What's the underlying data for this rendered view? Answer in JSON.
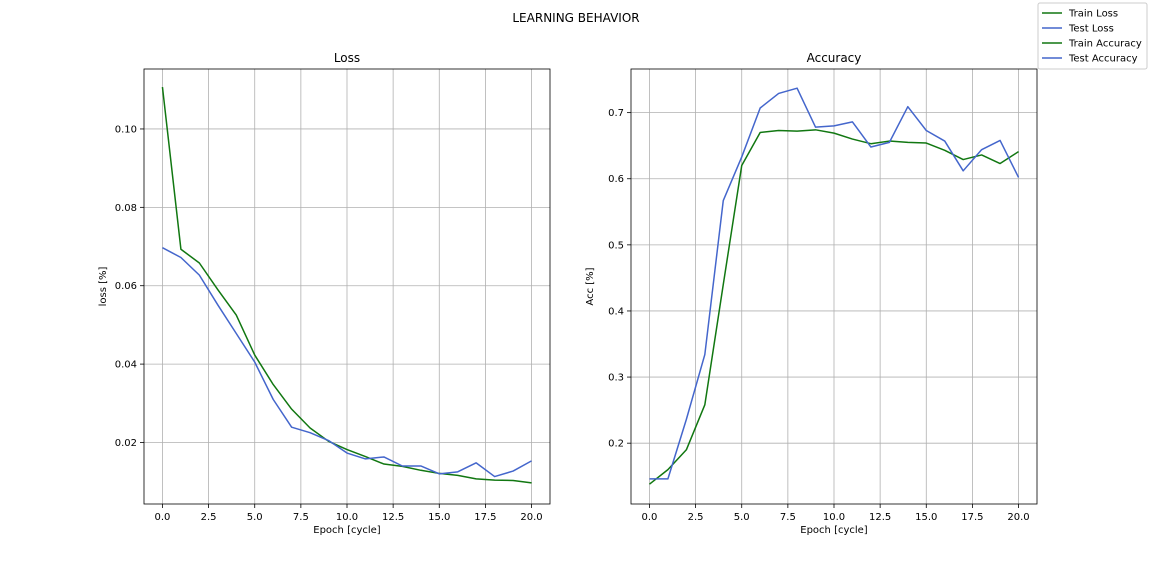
{
  "figure": {
    "suptitle": "LEARNING BEHAVIOR"
  },
  "colors": {
    "train": "#117711",
    "test": "#4466cc",
    "grid": "#b0b0b0",
    "axis": "#000000"
  },
  "legend": {
    "placement": "top-right",
    "entries": [
      {
        "label": "Train Loss",
        "color": "#117711"
      },
      {
        "label": "Test Loss",
        "color": "#4466cc"
      },
      {
        "label": "Train Accuracy",
        "color": "#117711"
      },
      {
        "label": "Test Accuracy",
        "color": "#4466cc"
      }
    ]
  },
  "chart_data": [
    {
      "type": "line",
      "title": "Loss",
      "xlabel": "Epoch [cycle]",
      "ylabel": "loss [%]",
      "xlim": [
        -1,
        21
      ],
      "ylim": [
        0.0043,
        0.1153
      ],
      "grid": true,
      "xticks": [
        0,
        2.5,
        5,
        7.5,
        10,
        12.5,
        15,
        17.5,
        20
      ],
      "xtick_labels": [
        "0.0",
        "2.5",
        "5.0",
        "7.5",
        "10.0",
        "12.5",
        "15.0",
        "17.5",
        "20.0"
      ],
      "yticks": [
        0.02,
        0.04,
        0.06,
        0.08,
        0.1
      ],
      "ytick_labels": [
        "0.02",
        "0.04",
        "0.06",
        "0.08",
        "0.10"
      ],
      "x": [
        0,
        1,
        2,
        3,
        4,
        5,
        6,
        7,
        8,
        9,
        10,
        11,
        12,
        13,
        14,
        15,
        16,
        17,
        18,
        19,
        20
      ],
      "series": [
        {
          "name": "Train Loss",
          "color": "#117711",
          "values": [
            0.1107,
            0.0693,
            0.0658,
            0.059,
            0.0525,
            0.0423,
            0.0348,
            0.0285,
            0.0237,
            0.0203,
            0.0182,
            0.0164,
            0.0145,
            0.0139,
            0.0129,
            0.0121,
            0.0116,
            0.0107,
            0.0104,
            0.0103,
            0.0097
          ]
        },
        {
          "name": "Test Loss",
          "color": "#4466cc",
          "values": [
            0.0697,
            0.0672,
            0.0627,
            0.0551,
            0.0478,
            0.0405,
            0.031,
            0.0239,
            0.0225,
            0.0205,
            0.0173,
            0.0158,
            0.0163,
            0.014,
            0.014,
            0.012,
            0.0125,
            0.0148,
            0.0113,
            0.0127,
            0.0153
          ]
        }
      ]
    },
    {
      "type": "line",
      "title": "Accuracy",
      "xlabel": "Epoch [cycle]",
      "ylabel": "Acc [%]",
      "xlim": [
        -1,
        21
      ],
      "ylim": [
        0.108,
        0.766
      ],
      "grid": true,
      "xticks": [
        0,
        2.5,
        5,
        7.5,
        10,
        12.5,
        15,
        17.5,
        20
      ],
      "xtick_labels": [
        "0.0",
        "2.5",
        "5.0",
        "7.5",
        "10.0",
        "12.5",
        "15.0",
        "17.5",
        "20.0"
      ],
      "yticks": [
        0.2,
        0.3,
        0.4,
        0.5,
        0.6,
        0.7
      ],
      "ytick_labels": [
        "0.2",
        "0.3",
        "0.4",
        "0.5",
        "0.6",
        "0.7"
      ],
      "x": [
        0,
        1,
        2,
        3,
        4,
        5,
        6,
        7,
        8,
        9,
        10,
        11,
        12,
        13,
        14,
        15,
        16,
        17,
        18,
        19,
        20
      ],
      "series": [
        {
          "name": "Train Accuracy",
          "color": "#117711",
          "values": [
            0.138,
            0.16,
            0.19,
            0.258,
            0.44,
            0.62,
            0.67,
            0.673,
            0.672,
            0.674,
            0.669,
            0.66,
            0.653,
            0.657,
            0.655,
            0.654,
            0.643,
            0.629,
            0.636,
            0.623,
            0.641
          ]
        },
        {
          "name": "Test Accuracy",
          "color": "#4466cc",
          "values": [
            0.146,
            0.146,
            0.236,
            0.334,
            0.567,
            0.633,
            0.707,
            0.729,
            0.737,
            0.678,
            0.68,
            0.686,
            0.648,
            0.655,
            0.709,
            0.673,
            0.657,
            0.612,
            0.644,
            0.658,
            0.602
          ]
        }
      ]
    }
  ]
}
